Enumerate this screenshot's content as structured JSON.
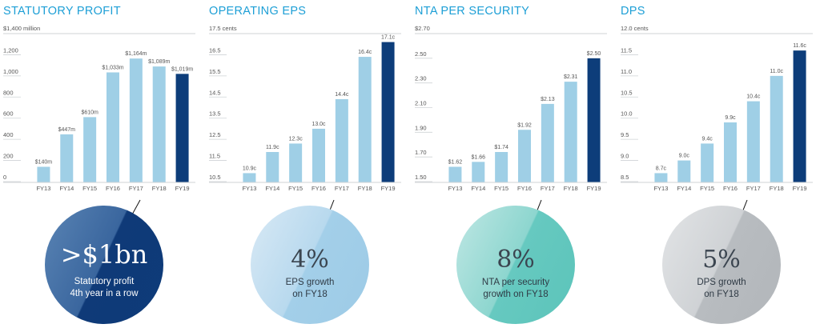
{
  "colors": {
    "title": "#1d9fd6",
    "bar_light": "#9fcfe6",
    "bar_dark": "#0d3d7a",
    "axis_text": "#555555",
    "grid": "#cfd3d6"
  },
  "panels": [
    {
      "title": "STATUTORY PROFIT",
      "circle": {
        "big": ">$1bn",
        "line1": "Statutory profit",
        "line2": "4th year in a row",
        "style": "blue"
      }
    },
    {
      "title": "OPERATING EPS",
      "circle": {
        "big": "4%",
        "line1": "EPS growth",
        "line2": "on FY18",
        "style": "light"
      }
    },
    {
      "title": "NTA PER SECURITY",
      "circle": {
        "big": "8%",
        "line1": "NTA per security",
        "line2": "growth on FY18",
        "style": "teal"
      }
    },
    {
      "title": "DPS",
      "circle": {
        "big": "5%",
        "line1": "DPS growth",
        "line2": "on FY18",
        "style": "grey"
      }
    }
  ],
  "chart_data": [
    {
      "type": "bar",
      "title": "STATUTORY PROFIT",
      "unit_label": "$1,400 million",
      "categories": [
        "FY13",
        "FY14",
        "FY15",
        "FY16",
        "FY17",
        "FY18",
        "FY19"
      ],
      "values": [
        140,
        447,
        610,
        1033,
        1164,
        1089,
        1019
      ],
      "value_labels": [
        "$140m",
        "$447m",
        "$610m",
        "$1,033m",
        "$1,164m",
        "$1,089m",
        "$1,019m"
      ],
      "ylim": [
        0,
        1400
      ],
      "yticks": [
        0,
        200,
        400,
        600,
        800,
        1000,
        1200
      ],
      "ytick_labels": [
        "0",
        "200",
        "400",
        "600",
        "800",
        "1,000",
        "1,200"
      ]
    },
    {
      "type": "bar",
      "title": "OPERATING EPS",
      "unit_label": "17.5 cents",
      "categories": [
        "FY13",
        "FY14",
        "FY15",
        "FY16",
        "FY17",
        "FY18",
        "FY19"
      ],
      "values": [
        10.9,
        11.9,
        12.3,
        13.0,
        14.4,
        16.4,
        17.1
      ],
      "value_labels": [
        "10.9c",
        "11.9c",
        "12.3c",
        "13.0c",
        "14.4c",
        "16.4c",
        "17.1c"
      ],
      "ylim": [
        10.5,
        17.5
      ],
      "yticks": [
        10.5,
        11.5,
        12.5,
        13.5,
        14.5,
        15.5,
        16.5
      ],
      "ytick_labels": [
        "10.5",
        "11.5",
        "12.5",
        "13.5",
        "14.5",
        "15.5",
        "16.5"
      ]
    },
    {
      "type": "bar",
      "title": "NTA PER SECURITY",
      "unit_label": "$2.70",
      "categories": [
        "FY13",
        "FY14",
        "FY15",
        "FY16",
        "FY17",
        "FY18",
        "FY19"
      ],
      "values": [
        1.62,
        1.66,
        1.74,
        1.92,
        2.13,
        2.31,
        2.5
      ],
      "value_labels": [
        "$1.62",
        "$1.66",
        "$1.74",
        "$1.92",
        "$2.13",
        "$2.31",
        "$2.50"
      ],
      "ylim": [
        1.5,
        2.7
      ],
      "yticks": [
        1.5,
        1.7,
        1.9,
        2.1,
        2.3,
        2.5
      ],
      "ytick_labels": [
        "1.50",
        "1.70",
        "1.90",
        "2.10",
        "2.30",
        "2.50"
      ]
    },
    {
      "type": "bar",
      "title": "DPS",
      "unit_label": "12.0 cents",
      "categories": [
        "FY13",
        "FY14",
        "FY15",
        "FY16",
        "FY17",
        "FY18",
        "FY19"
      ],
      "values": [
        8.7,
        9.0,
        9.4,
        9.9,
        10.4,
        11.0,
        11.6
      ],
      "value_labels": [
        "8.7c",
        "9.0c",
        "9.4c",
        "9.9c",
        "10.4c",
        "11.0c",
        "11.6c"
      ],
      "ylim": [
        8.5,
        12.0
      ],
      "yticks": [
        8.5,
        9.0,
        9.5,
        10.0,
        10.5,
        11.0,
        11.5
      ],
      "ytick_labels": [
        "8.5",
        "9.0",
        "9.5",
        "10.0",
        "10.5",
        "11.0",
        "11.5"
      ]
    }
  ]
}
